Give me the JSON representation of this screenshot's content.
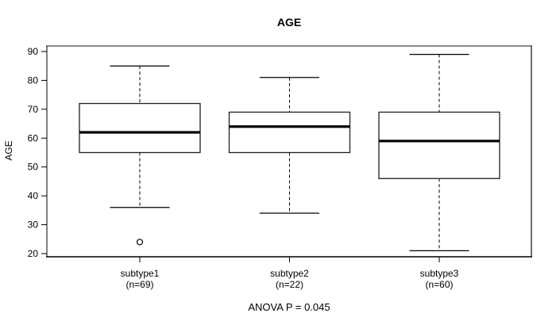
{
  "chart_data": {
    "type": "boxplot",
    "title": "AGE",
    "ylabel": "AGE",
    "xlabel": "",
    "footer": "ANOVA P = 0.045",
    "ylim": [
      20,
      90
    ],
    "yticks": [
      90,
      80,
      70,
      60,
      50,
      40,
      30,
      20
    ],
    "grid": false,
    "legend": "none",
    "groups": [
      {
        "label": "subtype1",
        "sublabel": "(n=69)",
        "n": 69,
        "whisker_low": 36,
        "q1": 55,
        "median": 62,
        "q3": 72,
        "whisker_high": 85,
        "outliers": [
          24
        ]
      },
      {
        "label": "subtype2",
        "sublabel": "(n=22)",
        "n": 22,
        "whisker_low": 34,
        "q1": 55,
        "median": 64,
        "q3": 69,
        "whisker_high": 81,
        "outliers": []
      },
      {
        "label": "subtype3",
        "sublabel": "(n=60)",
        "n": 60,
        "whisker_low": 21,
        "q1": 46,
        "median": 59,
        "q3": 69,
        "whisker_high": 89,
        "outliers": []
      }
    ],
    "colors": {
      "line": "#000000",
      "box_fill": "#ffffff",
      "box_stroke": "#1f1f1f",
      "background": "#ffffff",
      "border_top": "#8a8a8a",
      "border_right": "#3d3d3d",
      "border_bottom": "#000000",
      "border_left": "#000000"
    }
  }
}
